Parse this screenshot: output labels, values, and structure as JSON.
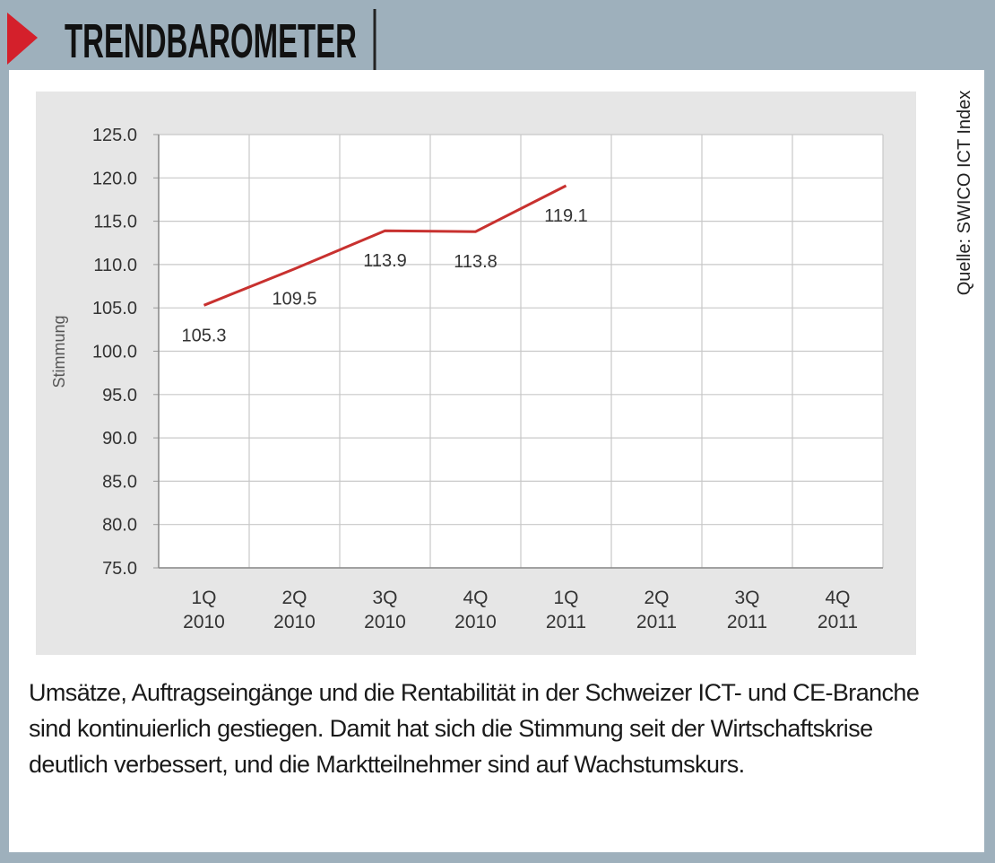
{
  "header": {
    "title": "TRENDBAROMETER"
  },
  "source": "Quelle: SWICO ICT Index",
  "chart_data": {
    "type": "line",
    "ylabel": "Stimmung",
    "categories": [
      "1Q\n2010",
      "2Q\n2010",
      "3Q\n2010",
      "4Q\n2010",
      "1Q\n2011",
      "2Q\n2011",
      "3Q\n2011",
      "4Q\n2011"
    ],
    "series": [
      {
        "name": "Stimmung",
        "color": "#c8312f",
        "values": [
          105.3,
          109.5,
          113.9,
          113.8,
          119.1,
          null,
          null,
          null
        ]
      }
    ],
    "ylim": [
      75,
      125
    ],
    "yticks": [
      {
        "value": 75,
        "label": "75.0"
      },
      {
        "value": 80,
        "label": "80.0"
      },
      {
        "value": 85,
        "label": "85.0"
      },
      {
        "value": 90,
        "label": "90.0"
      },
      {
        "value": 95,
        "label": "95.0"
      },
      {
        "value": 100,
        "label": "100.0"
      },
      {
        "value": 105,
        "label": "105.0"
      },
      {
        "value": 110,
        "label": "110.0"
      },
      {
        "value": 115,
        "label": "115.0"
      },
      {
        "value": 120,
        "label": "120.0"
      },
      {
        "value": 125,
        "label": "125.0"
      }
    ],
    "grid": true
  },
  "caption": "Umsätze, Auftragseingänge und die Rentabilität in der Schweizer ICT- und CE-Branche sind kontinuierlich gestiegen. Damit hat sich die Stimmung seit der Wirtschaftskrise deutlich verbessert, und die Marktteilnehmer sind auf Wachstumskurs."
}
